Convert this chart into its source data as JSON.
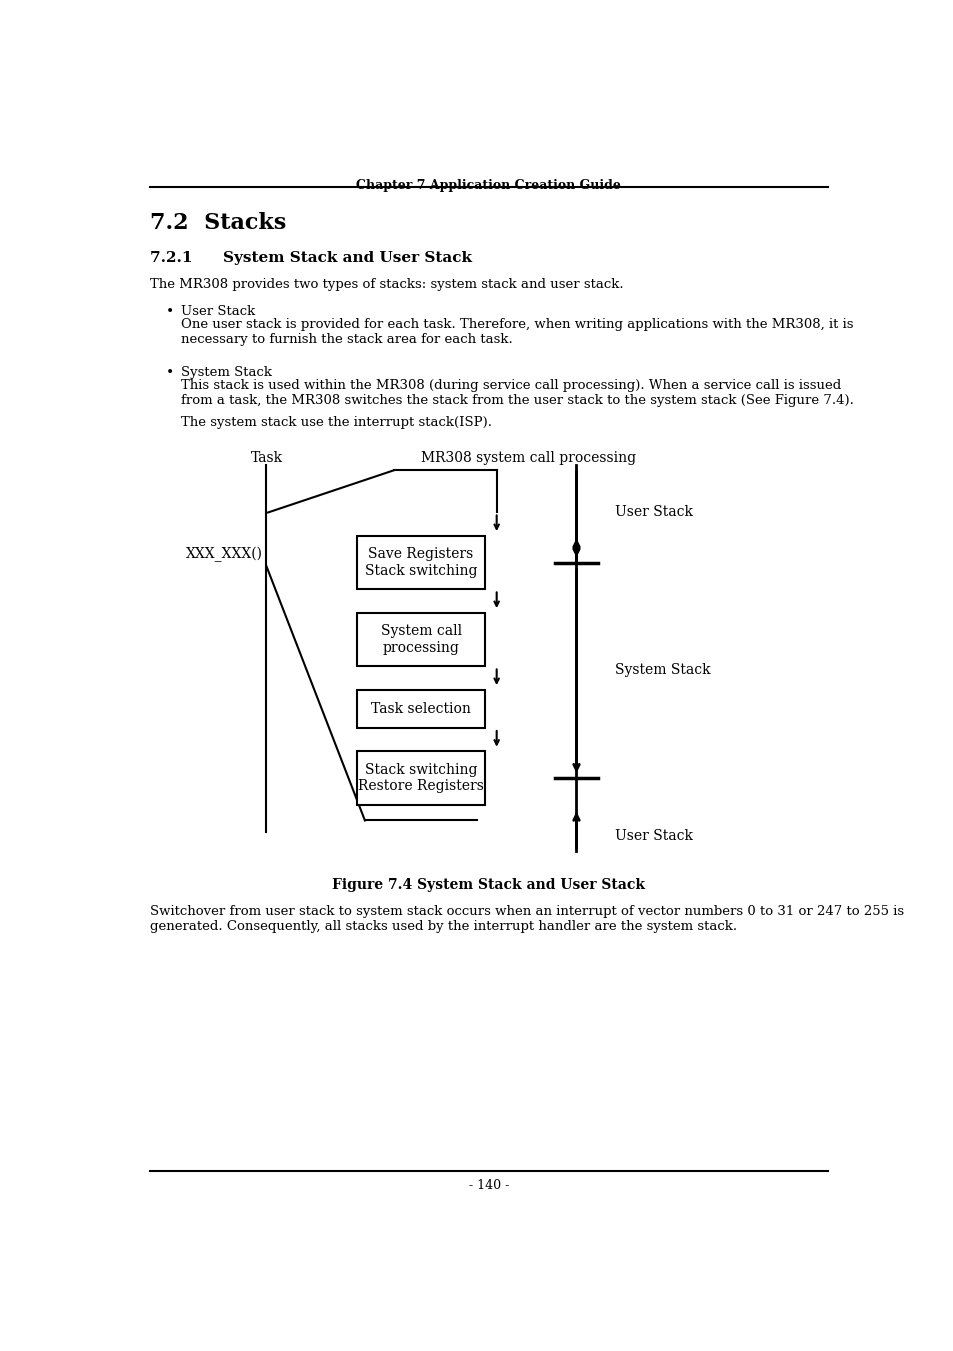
{
  "header_line": "Chapter 7 Application Creation Guide",
  "title_72": "7.2  Stacks",
  "title_721": "7.2.1  System Stack and User Stack",
  "para1": "The MR308 provides two types of stacks: system stack and user stack.",
  "bullet1_title": "User Stack",
  "bullet1_body": "One user stack is provided for each task. Therefore, when writing applications with the MR308, it is\nnecessary to furnish the stack area for each task.",
  "bullet2_title": "System Stack",
  "bullet2_body": "This stack is used within the MR308 (during service call processing). When a service call is issued\nfrom a task, the MR308 switches the stack from the user stack to the system stack (See Figure 7.4).",
  "bullet2_extra": "The system stack use the interrupt stack(ISP).",
  "fig_title": "Figure 7.4 System Stack and User Stack",
  "para2": "Switchover from user stack to system stack occurs when an interrupt of vector numbers 0 to 31 or 247 to 255 is\ngenerated. Consequently, all stacks used by the interrupt handler are the system stack.",
  "footer_line": "- 140 -",
  "diagram": {
    "task_label": "Task",
    "mr308_label": "MR308 system call processing",
    "xxx_label": "XXX_XXX()",
    "box1_text": "Save Registers\nStack switching",
    "box2_text": "System call\nprocessing",
    "box3_text": "Task selection",
    "box4_text": "Stack switching\nRestore Registers",
    "user_stack_top": "User Stack",
    "system_stack_label": "System Stack",
    "user_stack_bottom": "User Stack"
  }
}
